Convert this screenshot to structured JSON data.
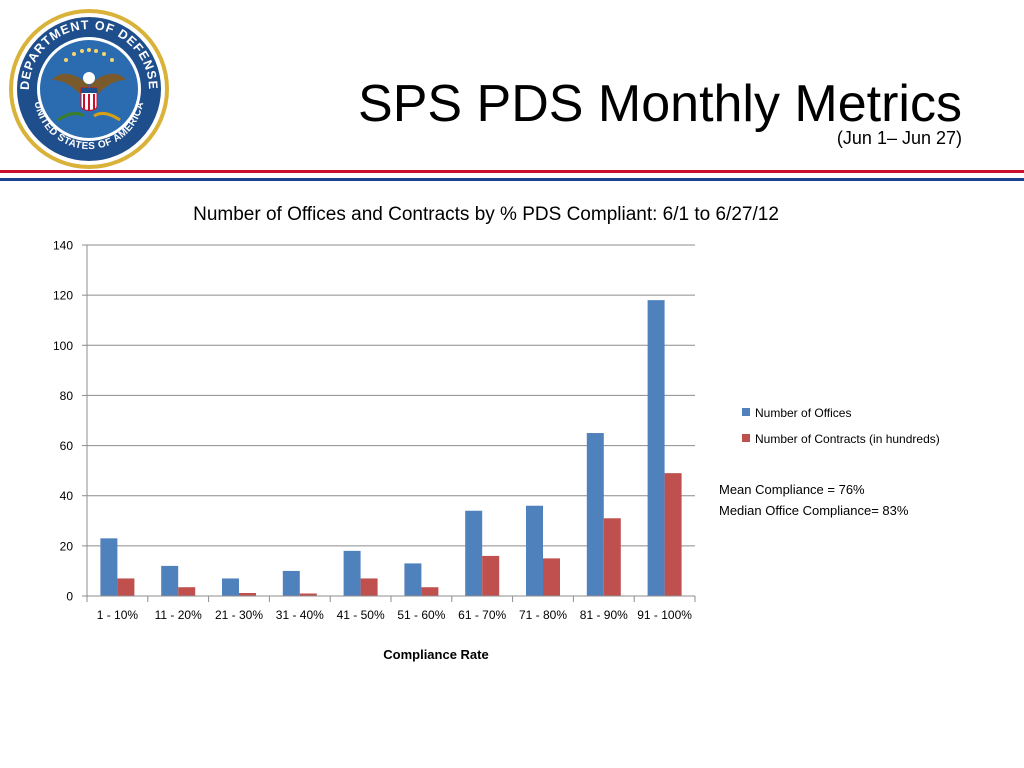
{
  "header": {
    "title": "SPS PDS Monthly Metrics",
    "subtitle": "(Jun 1– Jun 27)",
    "seal_top_text": "DEPARTMENT OF DEFENSE",
    "seal_bottom_text": "UNITED STATES OF AMERICA"
  },
  "colors": {
    "offices": "#4f81bd",
    "contracts": "#c0504d",
    "rule_red": "#c8102e",
    "rule_blue": "#1f3f8f",
    "seal_blue": "#1f4e8c",
    "seal_gold": "#d4a017"
  },
  "chart_data": {
    "type": "bar",
    "title": "Number of Offices and Contracts by % PDS Compliant:  6/1  to 6/27/12",
    "xlabel": "Compliance Rate",
    "ylabel": "",
    "ylim": [
      0,
      140
    ],
    "yticks": [
      "0",
      "20",
      "40",
      "60",
      "80",
      "100",
      "120",
      "140"
    ],
    "grid": true,
    "legend_position": "right",
    "categories": [
      "1 - 10%",
      "11 - 20%",
      "21 - 30%",
      "31 - 40%",
      "41 - 50%",
      "51 - 60%",
      "61 - 70%",
      "71 - 80%",
      "81 - 90%",
      "91 - 100%"
    ],
    "series": [
      {
        "name": "Number of Offices",
        "values": [
          23,
          12,
          7,
          10,
          18,
          13,
          34,
          36,
          65,
          118
        ]
      },
      {
        "name": "Number of Contracts (in hundreds)",
        "values": [
          7,
          3.5,
          1.2,
          1,
          7,
          3.5,
          16,
          15,
          31,
          49
        ]
      }
    ]
  },
  "notes": {
    "mean": "Mean Compliance = 76%",
    "median": "Median Office Compliance= 83%"
  }
}
